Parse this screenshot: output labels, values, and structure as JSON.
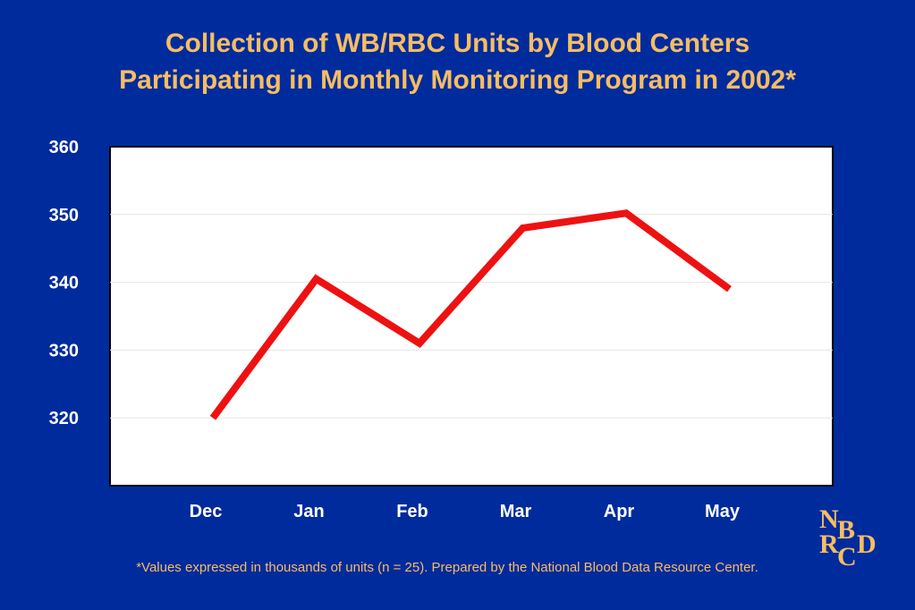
{
  "title": {
    "line1": "Collection of WB/RBC Units by Blood Centers",
    "line2": "Participating in Monthly Monitoring Program in 2002*"
  },
  "footnote": "*Values expressed in thousands of units (n = 25).  Prepared by the National Blood Data Resource Center.",
  "logo": {
    "letters": [
      "N",
      "B",
      "R",
      "D",
      "C"
    ]
  },
  "colors": {
    "background": "#002b9c",
    "title": "#f7bd62",
    "plot_area": "#ffffff",
    "line": "#ee1111",
    "tick_labels": "#ffffff"
  },
  "chart_data": {
    "type": "line",
    "title": "",
    "xlabel": "",
    "ylabel": "",
    "categories": [
      "Dec",
      "Jan",
      "Feb",
      "Mar",
      "Apr",
      "May"
    ],
    "series": [
      {
        "values": [
          320,
          340.5,
          331,
          348,
          350.2,
          339
        ]
      }
    ],
    "ylim": [
      310,
      360
    ],
    "yticks": [
      360,
      350,
      340,
      330,
      320
    ],
    "grid": true,
    "legend": false
  }
}
